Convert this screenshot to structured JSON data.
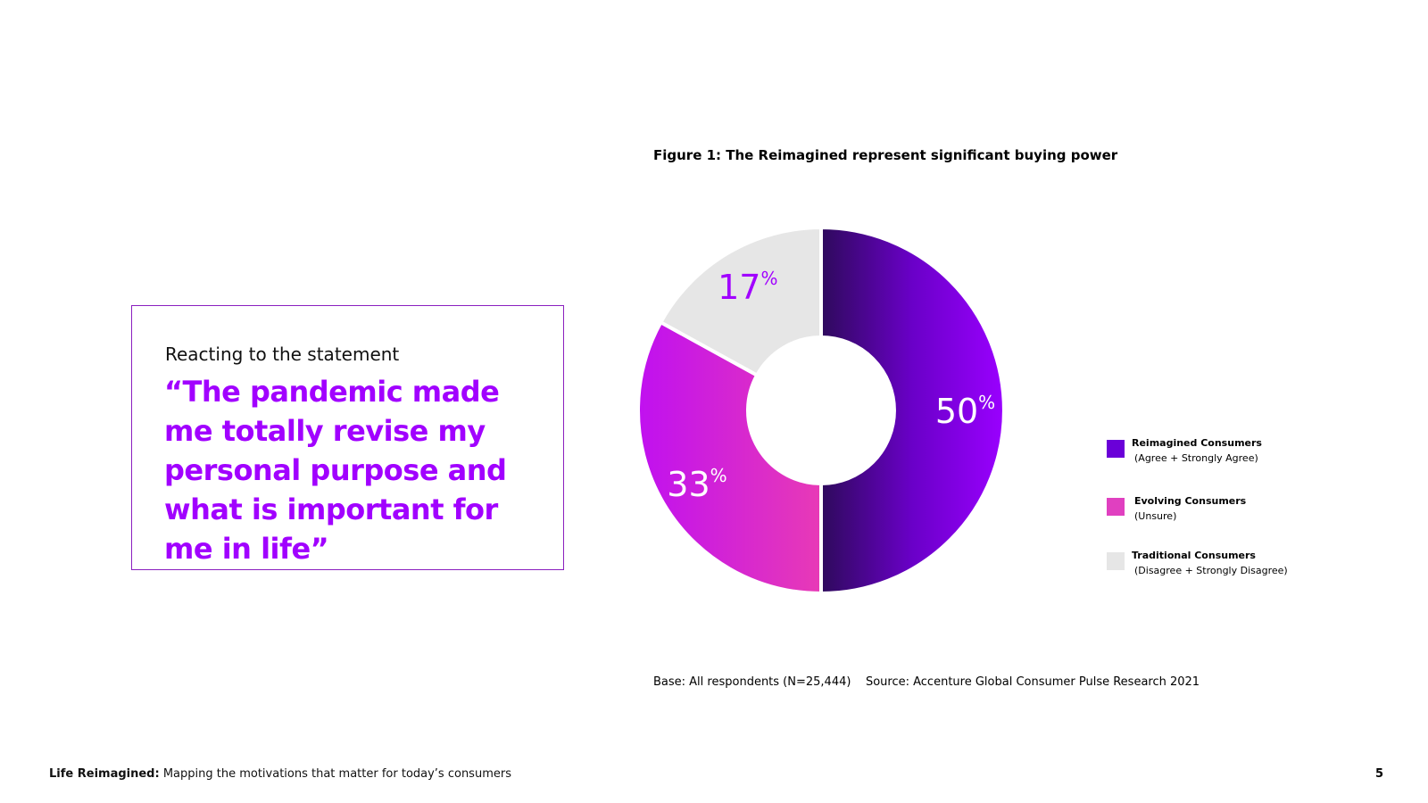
{
  "quote": {
    "intro": "Reacting to the statement",
    "text": "“The pandemic made me totally revise my personal purpose and what is important for me in life”"
  },
  "colors": {
    "accent": "#a100ff",
    "reimagined_dark": "#2e0a5c",
    "reimagined_light": "#9a00ff",
    "evolving_light": "#c010f0",
    "evolving_dark": "#e83ab6",
    "traditional": "#e6e6e6"
  },
  "chart_data": {
    "type": "pie",
    "title": "Figure 1: The Reimagined represent significant buying power",
    "series": [
      {
        "name": "Reimagined Consumers",
        "note": "(Agree + Strongly Agree)",
        "value": 50,
        "label": "50",
        "color": "#7b00e6"
      },
      {
        "name": "Evolving Consumers",
        "note": "(Unsure)",
        "value": 33,
        "label": "33",
        "color": "#e040c0"
      },
      {
        "name": "Traditional Consumers",
        "note": "(Disagree + Strongly Disagree)",
        "value": 17,
        "label": "17",
        "color": "#e6e6e6"
      }
    ],
    "unit": "%",
    "donut": true,
    "legend_position": "right"
  },
  "source": "Base: All respondents (N=25,444)    Source: Accenture Global Consumer Pulse Research 2021",
  "footer": {
    "title": "Life Reimagined:",
    "subtitle": " Mapping the motivations that matter for today’s consumers",
    "page": "5"
  }
}
